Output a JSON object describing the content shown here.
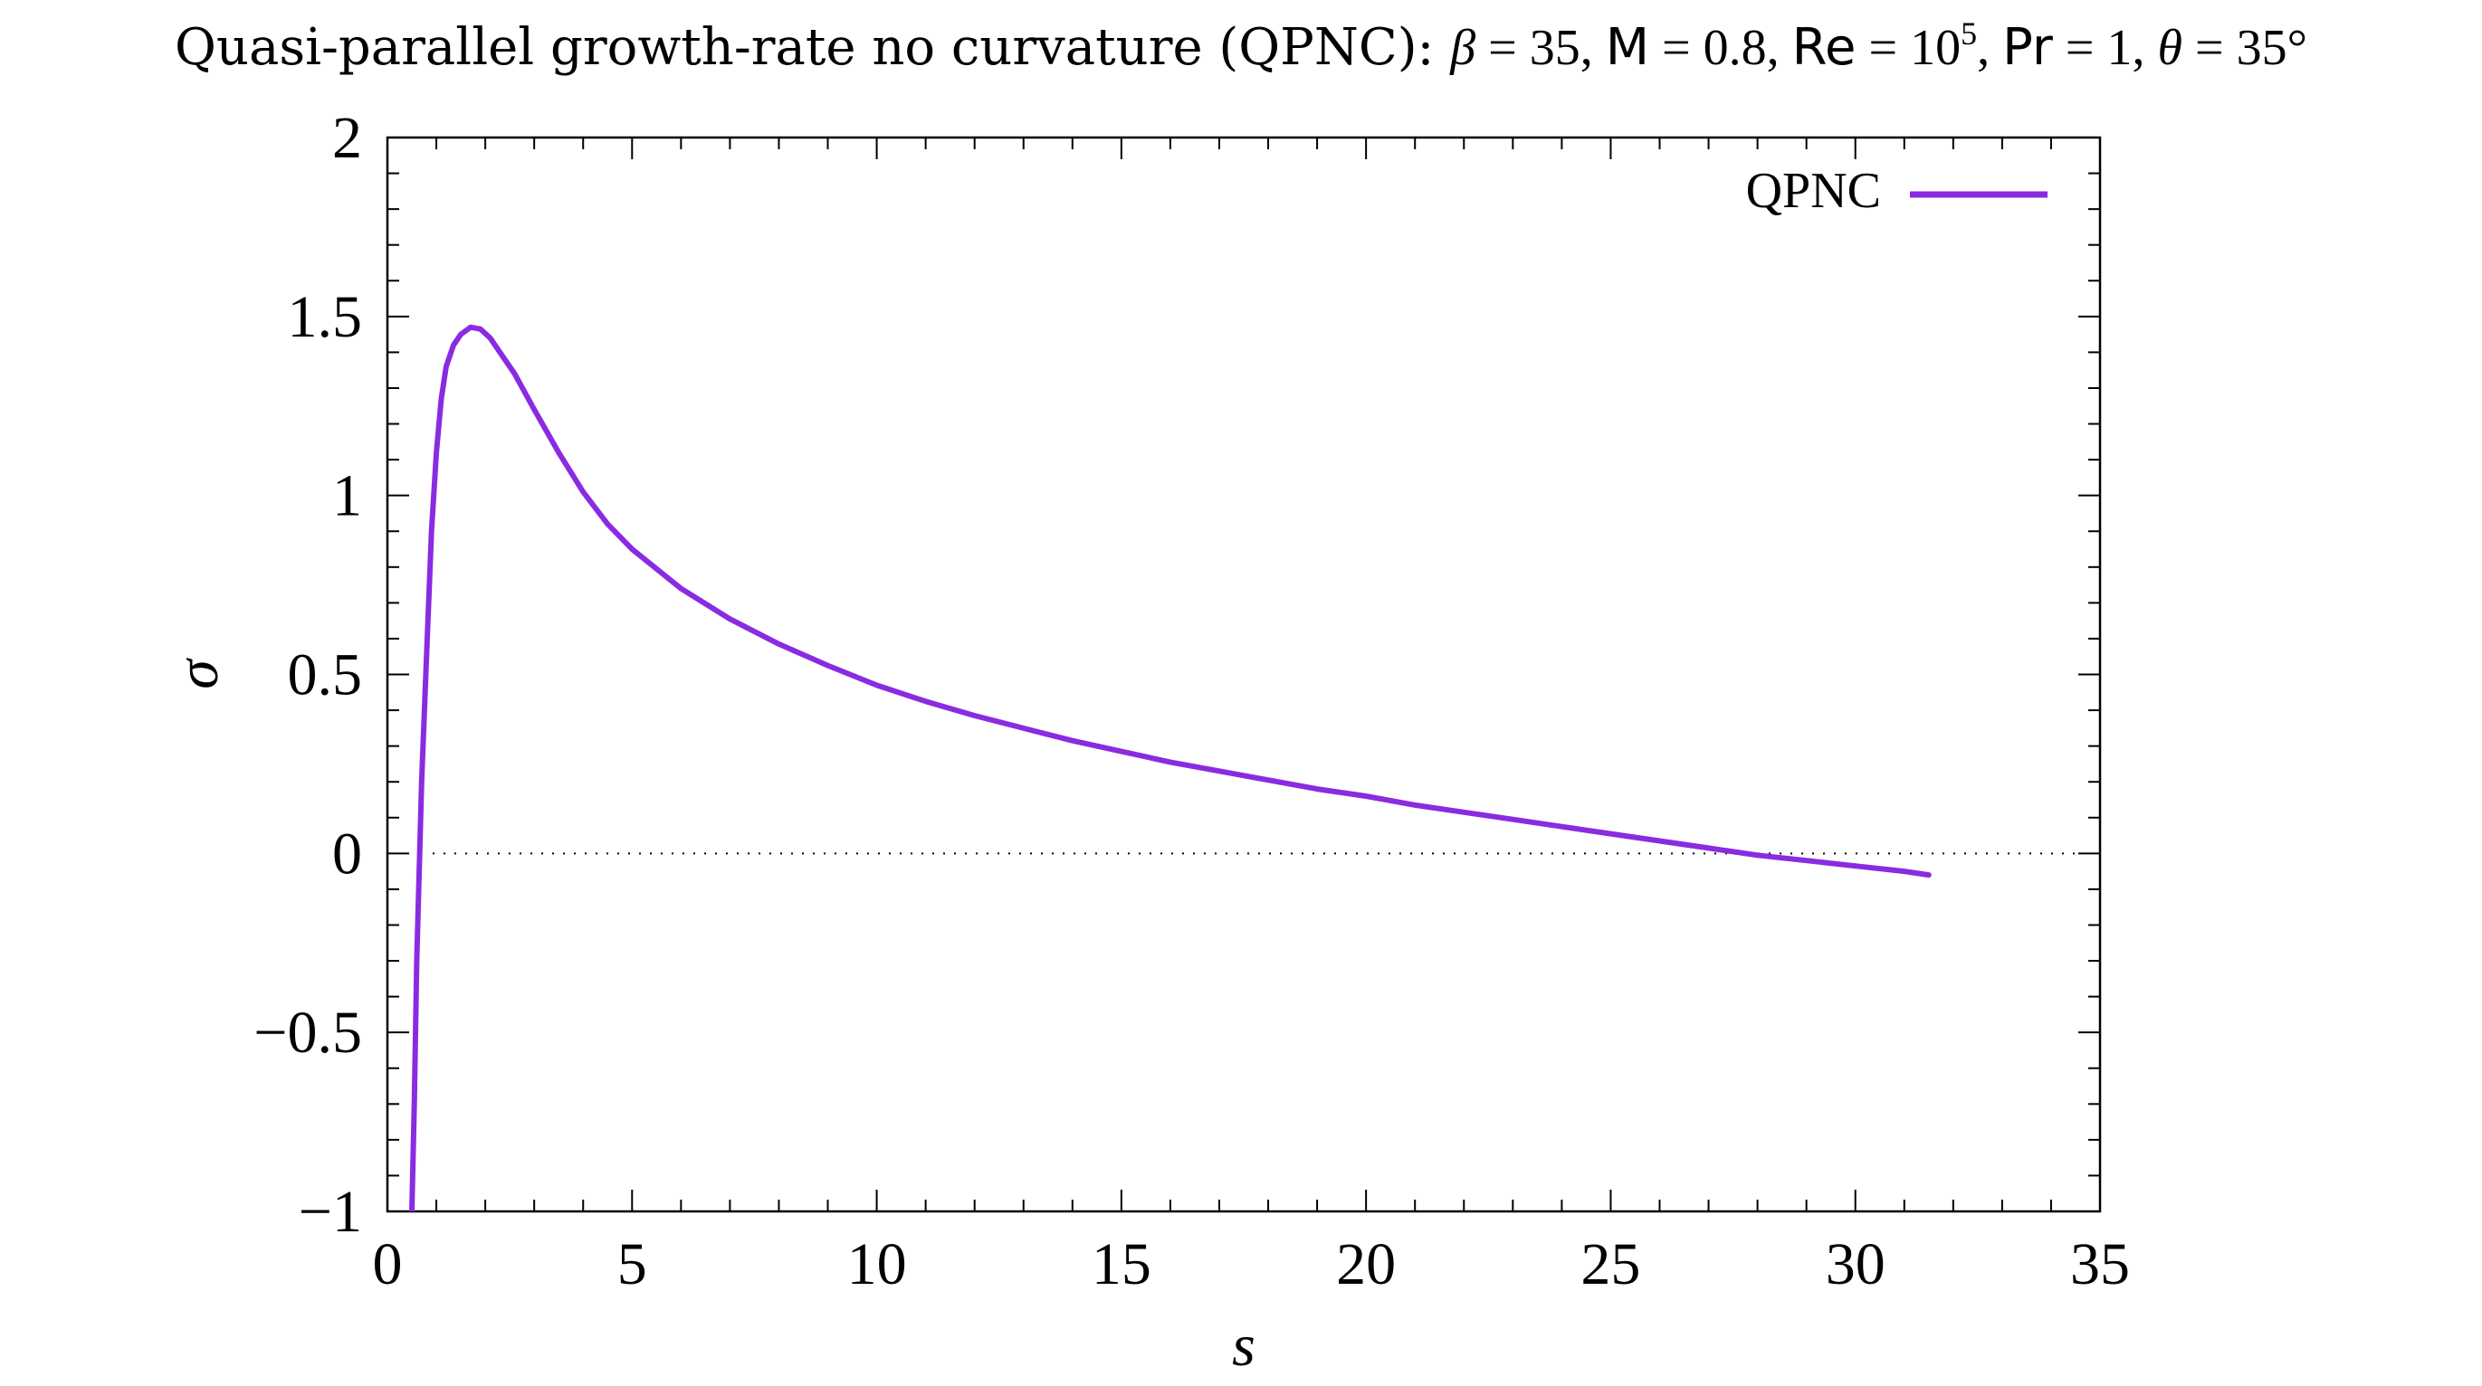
{
  "chart_data": {
    "type": "line",
    "title": {
      "prefix": "Quasi-parallel growth-rate no curvature (QPNC): ",
      "beta_symbol": "β",
      "beta_value": " = 35, ",
      "mach_symbol": "M",
      "mach_value": " = 0.8, ",
      "re_symbol": "Re",
      "re_value": " = 10",
      "re_exponent": "5",
      "pr_separator": ", ",
      "pr_symbol": "Pr",
      "pr_value": " = 1, ",
      "theta_symbol": "θ",
      "theta_value": " = 35°"
    },
    "xlabel": "s",
    "ylabel": "σ",
    "xlim": [
      0,
      35
    ],
    "ylim": [
      -1,
      2
    ],
    "x_ticks": [
      0,
      5,
      10,
      15,
      20,
      25,
      30,
      35
    ],
    "y_ticks": [
      -1,
      -0.5,
      0,
      0.5,
      1,
      1.5,
      2
    ],
    "x_tick_labels": [
      "0",
      "5",
      "10",
      "15",
      "20",
      "25",
      "30",
      "35"
    ],
    "y_tick_labels": [
      "−1",
      "−0.5",
      "0",
      "0.5",
      "1",
      "1.5",
      "2"
    ],
    "x_minor_step": 1,
    "y_minor_step": 0.1,
    "zero_line": "dotted",
    "legend_position": "top-right",
    "series": [
      {
        "name": "QPNC",
        "color": "#8a2be2",
        "x": [
          0.5,
          0.55,
          0.6,
          0.7,
          0.8,
          0.9,
          1.0,
          1.1,
          1.2,
          1.35,
          1.5,
          1.7,
          1.9,
          2.1,
          2.3,
          2.6,
          3.0,
          3.5,
          4.0,
          4.5,
          5.0,
          6.0,
          7.0,
          8.0,
          9.0,
          10.0,
          11.0,
          12.0,
          13.0,
          14.0,
          15.0,
          16.0,
          17.0,
          18.0,
          19.0,
          20.0,
          21.0,
          22.0,
          23.0,
          24.0,
          25.0,
          26.0,
          27.0,
          28.0,
          29.0,
          30.0,
          31.0,
          31.5
        ],
        "y": [
          -1.0,
          -0.7,
          -0.3,
          0.2,
          0.55,
          0.9,
          1.12,
          1.27,
          1.36,
          1.42,
          1.45,
          1.47,
          1.465,
          1.44,
          1.4,
          1.34,
          1.24,
          1.12,
          1.01,
          0.92,
          0.85,
          0.74,
          0.655,
          0.585,
          0.525,
          0.47,
          0.425,
          0.385,
          0.35,
          0.315,
          0.285,
          0.255,
          0.23,
          0.205,
          0.18,
          0.16,
          0.135,
          0.115,
          0.095,
          0.075,
          0.055,
          0.035,
          0.015,
          -0.005,
          -0.02,
          -0.035,
          -0.05,
          -0.06
        ]
      }
    ]
  }
}
